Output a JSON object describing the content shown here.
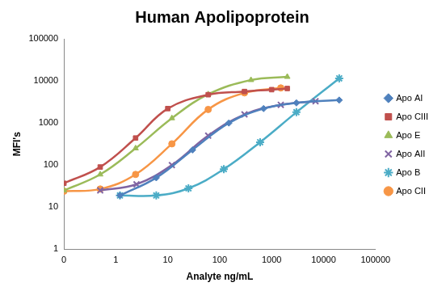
{
  "chart_data": {
    "type": "line",
    "title": "Human Apolipoprotein",
    "x_label": "Analyte ng/mL",
    "y_label": "MFI's",
    "log": true,
    "grid": false,
    "legend": "right",
    "xlim": [
      0.1,
      100000
    ],
    "xticks": [
      {
        "value": 0.1,
        "label": "0"
      },
      1,
      10,
      100,
      1000,
      10000,
      100000
    ],
    "ylim": [
      1,
      100000
    ],
    "yticks": [
      1,
      10,
      100,
      1000,
      10000,
      100000
    ],
    "series": [
      {
        "name": "Apo AI",
        "color": "#4f81bd",
        "marker": "diamond",
        "x": [
          1.2,
          6,
          30,
          150,
          700,
          3000,
          20000
        ],
        "values": [
          19,
          50,
          230,
          1000,
          2200,
          3000,
          3500
        ]
      },
      {
        "name": "Apo CIII",
        "color": "#c0504d",
        "marker": "square",
        "x": [
          0.1,
          0.5,
          2.4,
          10,
          60,
          300,
          1000,
          2000
        ],
        "values": [
          37,
          90,
          440,
          2200,
          4700,
          5600,
          6200,
          6600
        ]
      },
      {
        "name": "Apo E",
        "color": "#9bbb59",
        "marker": "triangle",
        "x": [
          0.1,
          0.5,
          2.4,
          12,
          60,
          400,
          2000
        ],
        "values": [
          25,
          60,
          250,
          1300,
          4800,
          10500,
          12500
        ]
      },
      {
        "name": "Apo AII",
        "color": "#8064a2",
        "marker": "x",
        "x": [
          0.5,
          2.5,
          12,
          60,
          300,
          1500,
          7000
        ],
        "values": [
          25,
          35,
          100,
          500,
          1600,
          2700,
          3300
        ]
      },
      {
        "name": "Apo B",
        "color": "#4bacc6",
        "marker": "star",
        "x": [
          1.2,
          6,
          25,
          120,
          600,
          3000,
          20000
        ],
        "values": [
          19,
          19,
          28,
          80,
          350,
          1800,
          11500
        ]
      },
      {
        "name": "Apo CII",
        "color": "#f79646",
        "marker": "circle",
        "x": [
          0.1,
          0.5,
          2.4,
          12,
          60,
          300,
          1500
        ],
        "values": [
          24,
          27,
          60,
          320,
          2100,
          5200,
          6800
        ]
      }
    ]
  }
}
